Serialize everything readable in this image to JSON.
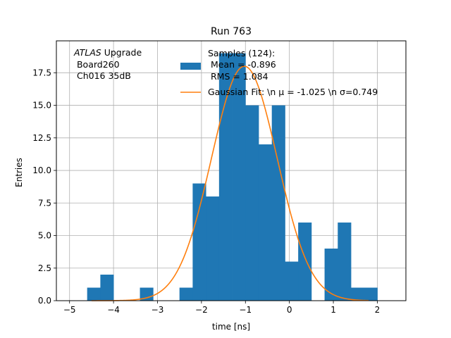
{
  "chart_data": {
    "type": "bar",
    "title": "Run 763",
    "xlabel": "time [ns]",
    "ylabel": "Entries",
    "xlim": [
      -5.3,
      2.65
    ],
    "ylim": [
      0,
      19.95
    ],
    "grid": true,
    "xticks": [
      -5,
      -4,
      -3,
      -2,
      -1,
      0,
      1,
      2
    ],
    "xtick_labels": [
      "−5",
      "−4",
      "−3",
      "−2",
      "−1",
      "0",
      "1",
      "2"
    ],
    "yticks": [
      0,
      2.5,
      5,
      7.5,
      10,
      12.5,
      15,
      17.5
    ],
    "ytick_labels": [
      "0.0",
      "2.5",
      "5.0",
      "7.5",
      "10.0",
      "12.5",
      "15.0",
      "17.5"
    ],
    "bar_color": "#1f77b4",
    "fit_color": "#ff7f0e",
    "histogram": {
      "name": "Samples",
      "bin_edges": [
        -4.6,
        -4.3,
        -4.0,
        -3.7,
        -3.4,
        -3.1,
        -2.8,
        -2.5,
        -2.2,
        -1.9,
        -1.6,
        -1.3,
        -1.0,
        -0.7,
        -0.4,
        -0.1,
        0.2,
        0.5,
        0.8,
        1.1,
        1.4,
        1.7,
        2.0
      ],
      "counts": [
        1,
        2,
        0,
        0,
        1,
        0,
        0,
        1,
        9,
        8,
        19,
        19,
        15,
        12,
        15,
        3,
        6,
        0,
        4,
        6,
        1,
        1
      ]
    },
    "fit": {
      "name": "Gaussian Fit",
      "mu": -1.025,
      "sigma": 0.749,
      "amplitude": 18.0,
      "x_range": [
        -4.5,
        1.8
      ]
    },
    "legend": {
      "placement": "top-right",
      "entries": [
        {
          "kind": "bar",
          "lines": [
            "Samples (124):",
            " Mean = -0.896",
            " RMS = 1.084"
          ]
        },
        {
          "kind": "line",
          "lines": [
            "Gaussian Fit: \\n μ = -1.025 \\n σ=0.749"
          ]
        }
      ]
    },
    "annotation": {
      "italic": "ATLAS",
      "first_line_rest": " Upgrade",
      "lines": [
        " Board260",
        " Ch016 35dB"
      ]
    }
  }
}
